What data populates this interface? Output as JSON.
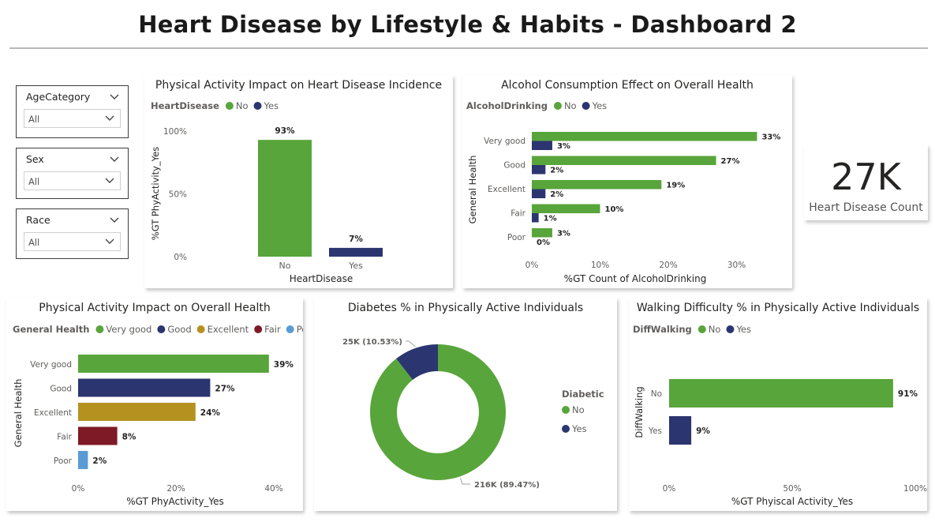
{
  "page": {
    "title": "Heart Disease by Lifestyle & Habits - Dashboard 2"
  },
  "colors": {
    "green": "#58a53b",
    "navy": "#2b3570",
    "olive": "#b59220",
    "maroon": "#7e1a25",
    "lightblue": "#5b9bd5",
    "icon": "chevron-down-icon"
  },
  "slicers": [
    {
      "label": "AgeCategory",
      "value": "All"
    },
    {
      "label": "Sex",
      "value": "All"
    },
    {
      "label": "Race",
      "value": "All"
    }
  ],
  "kpi": {
    "value": "27K",
    "label": "Heart Disease Count"
  },
  "chart_data": [
    {
      "id": "phys_hd",
      "type": "bar",
      "title": "Physical Activity Impact on Heart Disease Incidence",
      "legend_title": "HeartDisease",
      "legend": [
        "No",
        "Yes"
      ],
      "categories": [
        "No",
        "Yes"
      ],
      "values": [
        93,
        7
      ],
      "value_labels": [
        "93%",
        "7%"
      ],
      "xlabel": "HeartDisease",
      "ylabel": "%GT PhyActivity_Yes",
      "ylim": [
        0,
        100
      ],
      "yticks": [
        "0%",
        "50%",
        "100%"
      ],
      "grid": false,
      "legend_placement": "top-left"
    },
    {
      "id": "alcohol",
      "type": "bar",
      "orientation": "horizontal",
      "title": "Alcohol Consumption Effect on Overall Health",
      "legend_title": "AlcoholDrinking",
      "legend": [
        "No",
        "Yes"
      ],
      "categories": [
        "Very good",
        "Good",
        "Excellent",
        "Fair",
        "Poor"
      ],
      "series": [
        {
          "name": "No",
          "values": [
            33,
            27,
            19,
            10,
            3
          ],
          "labels": [
            "33%",
            "27%",
            "19%",
            "10%",
            "3%"
          ]
        },
        {
          "name": "Yes",
          "values": [
            3,
            2,
            2,
            1,
            0
          ],
          "labels": [
            "3%",
            "2%",
            "2%",
            "1%",
            "0%"
          ]
        }
      ],
      "xlabel": "%GT Count of AlcoholDrinking",
      "ylabel": "General Health",
      "xlim": [
        0,
        35
      ],
      "xticks": [
        "0%",
        "10%",
        "20%",
        "30%"
      ],
      "grid": false,
      "legend_placement": "top-left"
    },
    {
      "id": "phys_health",
      "type": "bar",
      "orientation": "horizontal",
      "title": "Physical Activity Impact on Overall Health",
      "legend_title": "General Health",
      "legend": [
        "Very good",
        "Good",
        "Excellent",
        "Fair",
        "Poor"
      ],
      "categories": [
        "Very good",
        "Good",
        "Excellent",
        "Fair",
        "Poor"
      ],
      "values": [
        39,
        27,
        24,
        8,
        2
      ],
      "value_labels": [
        "39%",
        "27%",
        "24%",
        "8%",
        "2%"
      ],
      "xlabel": "%GT PhyActivity_Yes",
      "ylabel": "General Health",
      "xlim": [
        0,
        40
      ],
      "xticks": [
        "0%",
        "20%",
        "40%"
      ],
      "grid": false,
      "legend_placement": "top-left"
    },
    {
      "id": "diabetes",
      "type": "pie",
      "title": "Diabetes % in Physically Active Individuals",
      "legend_title": "Diabetic",
      "legend": [
        "No",
        "Yes"
      ],
      "categories": [
        "No",
        "Yes"
      ],
      "values": [
        89.47,
        10.53
      ],
      "value_labels": [
        "216K (89.47%)",
        "25K (10.53%)"
      ],
      "legend_placement": "right"
    },
    {
      "id": "walking",
      "type": "bar",
      "orientation": "horizontal",
      "title": "Walking Difficulty % in Physically Active Individuals",
      "legend_title": "DiffWalking",
      "legend": [
        "No",
        "Yes"
      ],
      "categories": [
        "No",
        "Yes"
      ],
      "values": [
        91,
        9
      ],
      "value_labels": [
        "91%",
        "9%"
      ],
      "xlabel": "%GT Phyiscal Activity_Yes",
      "ylabel": "DiffWalking",
      "xlim": [
        0,
        100
      ],
      "xticks": [
        "0%",
        "50%",
        "100%"
      ],
      "grid": false,
      "legend_placement": "top-left"
    }
  ]
}
